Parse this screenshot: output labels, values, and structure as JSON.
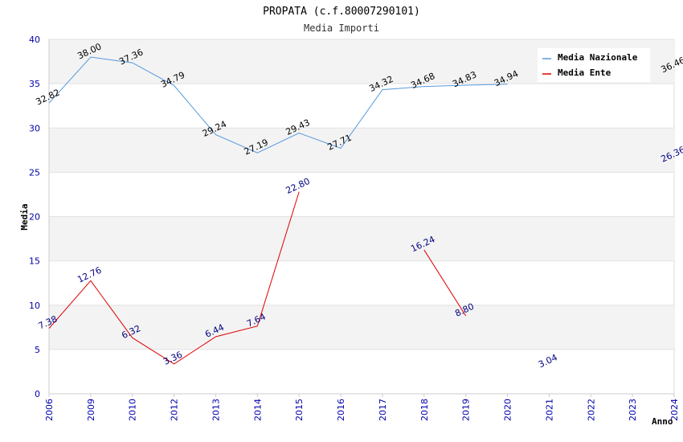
{
  "chart_data": {
    "type": "line",
    "title": "PROPATA (c.f.80007290101)",
    "subtitle": "Media Importi",
    "xlabel": "Anno",
    "ylabel": "Media",
    "categories": [
      "2006",
      "2009",
      "2010",
      "2012",
      "2013",
      "2014",
      "2015",
      "2016",
      "2017",
      "2018",
      "2019",
      "2020",
      "2021",
      "2022",
      "2023",
      "2024"
    ],
    "ylim": [
      0,
      40
    ],
    "yticks": [
      0,
      5,
      10,
      15,
      20,
      25,
      30,
      35,
      40
    ],
    "grid": true,
    "legend_position": "top-right",
    "series": [
      {
        "name": "Media Nazionale",
        "color": "#5599dd",
        "label_color": "#000000",
        "values": [
          32.82,
          38.0,
          37.36,
          34.79,
          29.24,
          27.19,
          29.43,
          27.71,
          34.32,
          34.68,
          34.83,
          34.94,
          null,
          null,
          null,
          36.46
        ],
        "labels": [
          "32.82",
          "38.00",
          "37.36",
          "34.79",
          "29.24",
          "27.19",
          "29.43",
          "27.71",
          "34.32",
          "34.68",
          "34.83",
          "34.94",
          "",
          "",
          "",
          "36.46"
        ]
      },
      {
        "name": "Media Ente",
        "color": "#dd0000",
        "label_color": "#000080",
        "values": [
          7.38,
          12.76,
          6.32,
          3.36,
          6.44,
          7.64,
          22.8,
          null,
          null,
          16.24,
          8.8,
          null,
          3.04,
          null,
          null,
          26.36
        ],
        "labels": [
          "7.38",
          "12.76",
          "6.32",
          "3.36",
          "6.44",
          "7.64",
          "22.80",
          "",
          "",
          "16.24",
          "8.80",
          "",
          "3.04",
          "",
          "",
          "26.36"
        ]
      }
    ]
  }
}
